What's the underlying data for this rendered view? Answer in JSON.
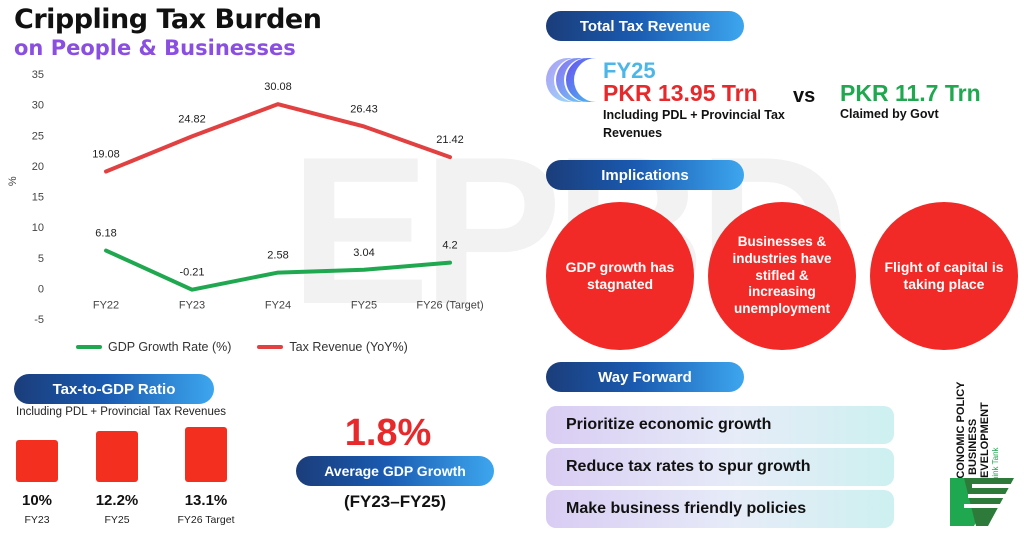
{
  "title": {
    "line1": "Crippling Tax Burden",
    "line2": "on People & Businesses"
  },
  "watermark": "EPBD",
  "chart_data": {
    "type": "line",
    "categories": [
      "FY22",
      "FY23",
      "FY24",
      "FY25",
      "FY26 (Target)"
    ],
    "series": [
      {
        "name": "GDP Growth Rate (%)",
        "values": [
          6.18,
          -0.21,
          2.58,
          3.04,
          4.2
        ],
        "color": "#1fa84f"
      },
      {
        "name": "Tax Revenue (YoY%)",
        "values": [
          19.08,
          24.82,
          30.08,
          26.43,
          21.42
        ],
        "color": "#e24141"
      }
    ],
    "value_labels": [
      [
        "6.18",
        "-0.21",
        "2.58",
        "3.04",
        "4.2"
      ],
      [
        "19.08",
        "24.82",
        "30.08",
        "26.43",
        "21.42"
      ]
    ],
    "ylabel": "%",
    "ylim": [
      -5,
      35
    ],
    "yticks": [
      -5,
      0,
      5,
      10,
      15,
      20,
      25,
      30,
      35
    ],
    "legend_position": "bottom"
  },
  "ratio": {
    "pill": "Tax-to-GDP Ratio",
    "subtitle": "Including PDL + Provincial Tax Revenues",
    "bars": [
      {
        "value_num": 10,
        "value": "10%",
        "label": "FY23"
      },
      {
        "value_num": 12.2,
        "value": "12.2%",
        "label": "FY25"
      },
      {
        "value_num": 13.1,
        "value": "13.1%",
        "label": "FY26 Target"
      }
    ]
  },
  "avg_gdp": {
    "value": "1.8%",
    "label": "Average GDP Growth",
    "period": "(FY23–FY25)"
  },
  "revenue": {
    "pill": "Total Tax Revenue",
    "fy": "FY25",
    "pkr_actual": "PKR 13.95 Trn",
    "pkr_actual_note": "Including PDL + Provincial Tax Revenues",
    "vs": "vs",
    "pkr_claimed": "PKR 11.7 Trn",
    "pkr_claimed_note": "Claimed by Govt"
  },
  "implications": {
    "pill": "Implications",
    "items": [
      "GDP growth has stagnated",
      "Businesses & industries have stifled & increasing unemployment",
      "Flight of capital is taking place"
    ]
  },
  "way_forward": {
    "pill": "Way Forward",
    "items": [
      "Prioritize economic growth",
      "Reduce tax rates to spur growth",
      "Make business friendly policies"
    ]
  },
  "brand": {
    "line1": "ECONOMIC POLICY",
    "line2": "& BUSINESS",
    "line3": "DEVELOPMENT",
    "tagline": "Think Tank"
  },
  "colors": {
    "accent_red": "#e8292b",
    "accent_green": "#1fa84f",
    "title_purple": "#8a4fe0",
    "pill_blue": "#1a5ab0"
  }
}
